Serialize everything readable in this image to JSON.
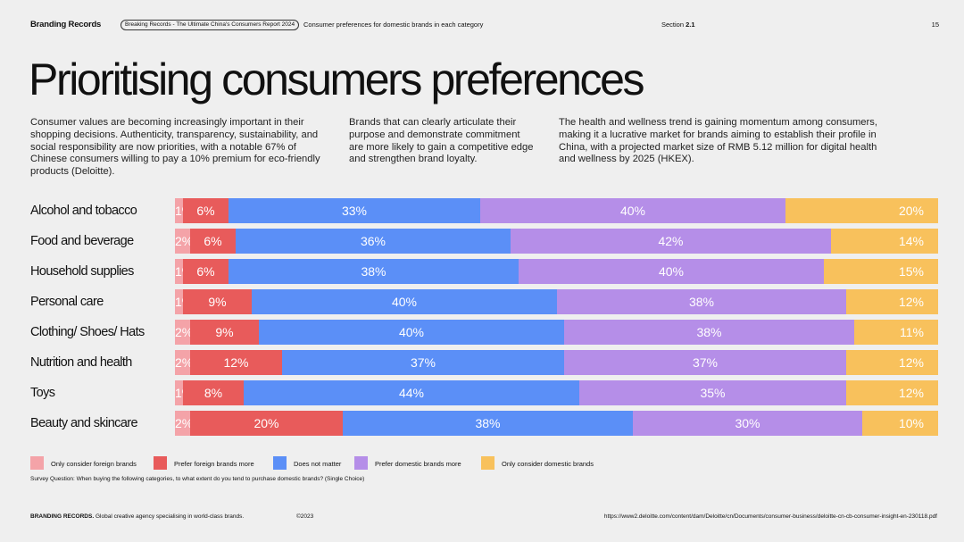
{
  "header": {
    "brand": "Branding Records",
    "report_pill": "Breaking Records - The Ultimate China's Consumers Report 2024",
    "subtitle": "Consumer preferences for domestic brands in each category",
    "section_label": "Section",
    "section_number": "2.1",
    "page_number": "15"
  },
  "title": "Prioritising consumers preferences",
  "intro": [
    "Consumer values are becoming increasingly important in their shopping decisions. Authenticity, transparency, sustainability, and social responsibility are now priorities, with a notable 67% of Chinese consumers willing to pay a 10% premium for eco-friendly products (Deloitte).",
    "Brands that can clearly articulate their purpose and demonstrate commitment are more likely to gain a competitive edge and strengthen brand loyalty.",
    "The health and wellness trend is gaining momentum among consumers, making it a lucrative market for brands aiming to establish their profile in China, with a projected market size of RMB 5.12 million for digital health and wellness by 2025 (HKEX)."
  ],
  "chart_data": {
    "type": "bar",
    "orientation": "horizontal",
    "stacked": true,
    "categories": [
      "Alcohol and tobacco",
      "Food and beverage",
      "Household supplies",
      "Personal care",
      "Clothing/ Shoes/ Hats",
      "Nutrition and health",
      "Toys",
      "Beauty and skincare"
    ],
    "series": [
      {
        "name": "Only consider foreign brands",
        "color": "#f4a3a8",
        "values": [
          1,
          2,
          1,
          1,
          2,
          2,
          1,
          2
        ]
      },
      {
        "name": "Prefer foreign brands more",
        "color": "#e85b5b",
        "values": [
          6,
          6,
          6,
          9,
          9,
          12,
          8,
          20
        ]
      },
      {
        "name": "Does not matter",
        "color": "#5b8ff7",
        "values": [
          33,
          36,
          38,
          40,
          40,
          37,
          44,
          38
        ]
      },
      {
        "name": "Prefer domestic brands more",
        "color": "#b58ee8",
        "values": [
          40,
          42,
          40,
          38,
          38,
          37,
          35,
          30
        ]
      },
      {
        "name": "Only consider domestic brands",
        "color": "#f8c15c",
        "values": [
          20,
          14,
          15,
          12,
          11,
          12,
          12,
          10
        ]
      }
    ],
    "value_suffix": "%",
    "legend_position": "bottom-left"
  },
  "survey_question": "Survey Question: When buying the following categories, to what extent do you tend to purchase domestic brands? (Single Choice)",
  "footer": {
    "brand": "BRANDING RECORDS.",
    "tagline": "Global creative agency specialising in world-class brands.",
    "copyright": "©2023",
    "url": "https://www2.deloitte.com/content/dam/Deloitte/cn/Documents/consumer-business/deloitte-cn-cb-consumer-insight-en-230118.pdf"
  }
}
